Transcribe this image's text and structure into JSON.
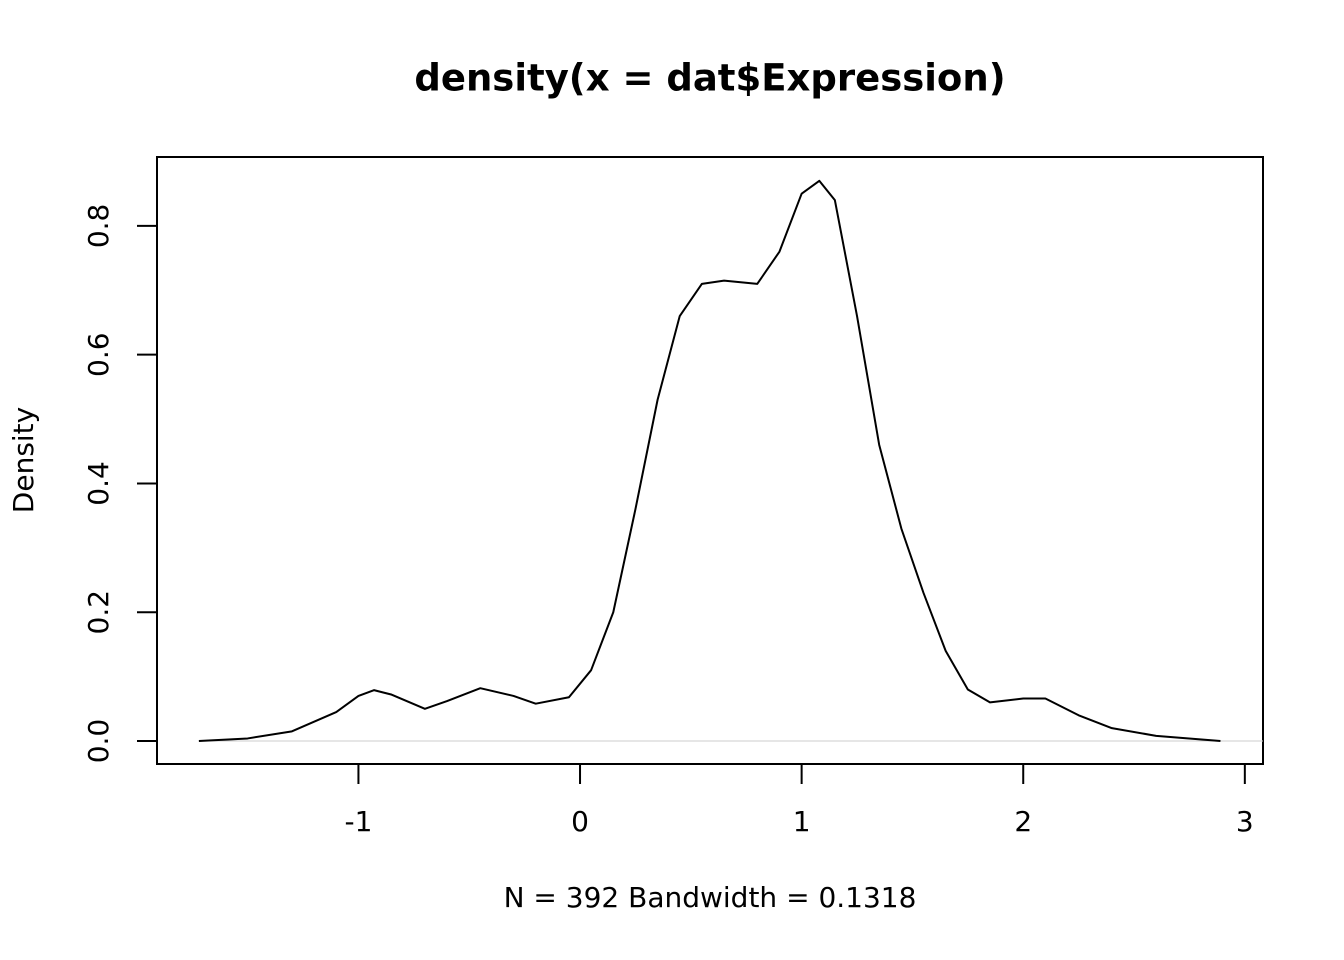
{
  "chart_data": {
    "type": "line",
    "title": "density(x = dat$Expression)",
    "xlabel": "N = 392   Bandwidth = 0.1318",
    "ylabel": "Density",
    "x": [
      -1.72,
      -1.5,
      -1.3,
      -1.1,
      -1.0,
      -0.93,
      -0.85,
      -0.7,
      -0.6,
      -0.45,
      -0.3,
      -0.2,
      -0.05,
      0.05,
      0.15,
      0.25,
      0.35,
      0.45,
      0.55,
      0.65,
      0.8,
      0.9,
      1.0,
      1.08,
      1.15,
      1.25,
      1.35,
      1.45,
      1.55,
      1.65,
      1.75,
      1.85,
      2.0,
      2.1,
      2.25,
      2.4,
      2.6,
      2.89
    ],
    "values": [
      0,
      0.004,
      0.015,
      0.045,
      0.07,
      0.079,
      0.072,
      0.05,
      0.062,
      0.082,
      0.07,
      0.058,
      0.068,
      0.11,
      0.2,
      0.36,
      0.53,
      0.66,
      0.71,
      0.715,
      0.71,
      0.76,
      0.85,
      0.87,
      0.84,
      0.66,
      0.46,
      0.33,
      0.23,
      0.14,
      0.08,
      0.06,
      0.066,
      0.066,
      0.04,
      0.02,
      0.008,
      0
    ],
    "color": "#000000",
    "xlim": [
      -1.909,
      3.082
    ],
    "ylim": [
      -0.0357,
      0.907
    ],
    "xticks": [
      -1,
      0,
      1,
      2,
      3
    ],
    "yticks": [
      {
        "value": 0,
        "label": "0.0"
      },
      0.2,
      0.4,
      0.6,
      0.8
    ]
  }
}
